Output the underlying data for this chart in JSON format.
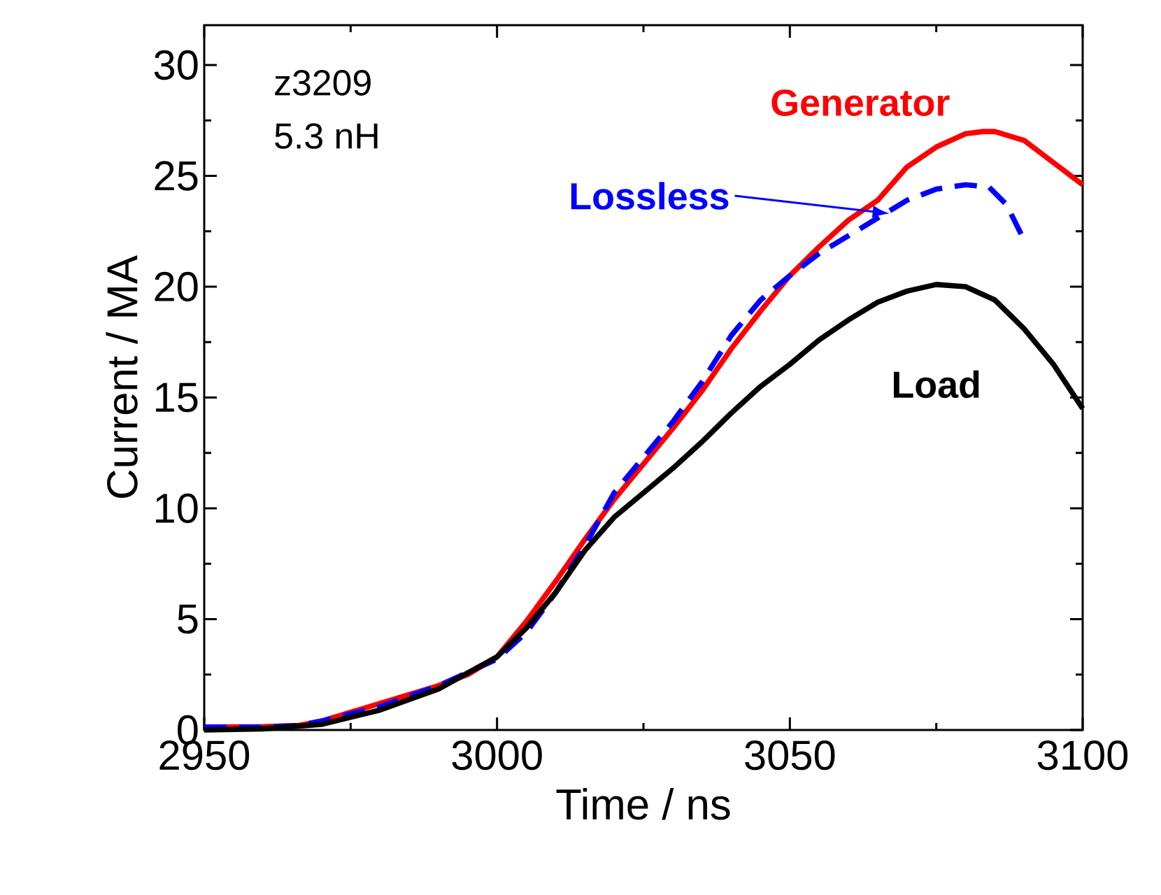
{
  "chart_data": {
    "type": "line",
    "xlabel": "Time / ns",
    "ylabel": "Current / MA",
    "annotations": [
      "z3209",
      "5.3 nH"
    ],
    "xlim": [
      2950,
      3100
    ],
    "xticks": [
      2950,
      3000,
      3050,
      3100
    ],
    "ylim": [
      0,
      31.8
    ],
    "yticks": [
      0,
      5,
      10,
      15,
      20,
      25,
      30
    ],
    "series": [
      {
        "name": "Generator",
        "color": "#ff0000",
        "line_style": "solid",
        "x": [
          2950,
          2960,
          2966,
          2970,
          2980,
          2985,
          2990,
          2995,
          3000,
          3005,
          3010,
          3015,
          3020,
          3025,
          3030,
          3035,
          3040,
          3045,
          3050,
          3055,
          3060,
          3065,
          3070,
          3075,
          3080,
          3083,
          3085,
          3090,
          3095,
          3100
        ],
        "values": [
          0.13,
          0.15,
          0.2,
          0.4,
          1.2,
          1.6,
          2.0,
          2.5,
          3.3,
          4.9,
          6.7,
          8.6,
          10.4,
          12.0,
          13.6,
          15.3,
          17.2,
          18.9,
          20.5,
          21.8,
          23.0,
          23.9,
          25.4,
          26.3,
          26.9,
          27.0,
          27.0,
          26.6,
          25.6,
          24.6
        ]
      },
      {
        "name": "Lossless",
        "color": "#0000ff",
        "line_style": "dashed",
        "x": [
          2950,
          2960,
          2966,
          2970,
          2980,
          2990,
          3000,
          3005,
          3010,
          3015,
          3020,
          3025,
          3030,
          3035,
          3040,
          3045,
          3050,
          3055,
          3060,
          3065,
          3070,
          3075,
          3080,
          3084,
          3087,
          3090
        ],
        "values": [
          0.13,
          0.13,
          0.2,
          0.4,
          1.05,
          2.0,
          3.2,
          4.4,
          6.2,
          8.3,
          10.7,
          12.3,
          13.9,
          15.7,
          17.8,
          19.4,
          20.5,
          21.5,
          22.3,
          23.1,
          23.9,
          24.4,
          24.6,
          24.5,
          23.7,
          22.1
        ]
      },
      {
        "name": "Load",
        "color": "#000000",
        "line_style": "solid",
        "x": [
          2950,
          2960,
          2970,
          2980,
          2990,
          3000,
          3005,
          3010,
          3015,
          3020,
          3025,
          3030,
          3035,
          3040,
          3045,
          3050,
          3055,
          3060,
          3065,
          3070,
          3075,
          3080,
          3085,
          3090,
          3095,
          3100
        ],
        "values": [
          0.0,
          0.05,
          0.25,
          0.9,
          1.85,
          3.3,
          4.6,
          6.2,
          8.1,
          9.6,
          10.7,
          11.8,
          13.0,
          14.3,
          15.5,
          16.5,
          17.6,
          18.5,
          19.3,
          19.8,
          20.1,
          20.0,
          19.4,
          18.1,
          16.5,
          14.5
        ]
      }
    ]
  }
}
